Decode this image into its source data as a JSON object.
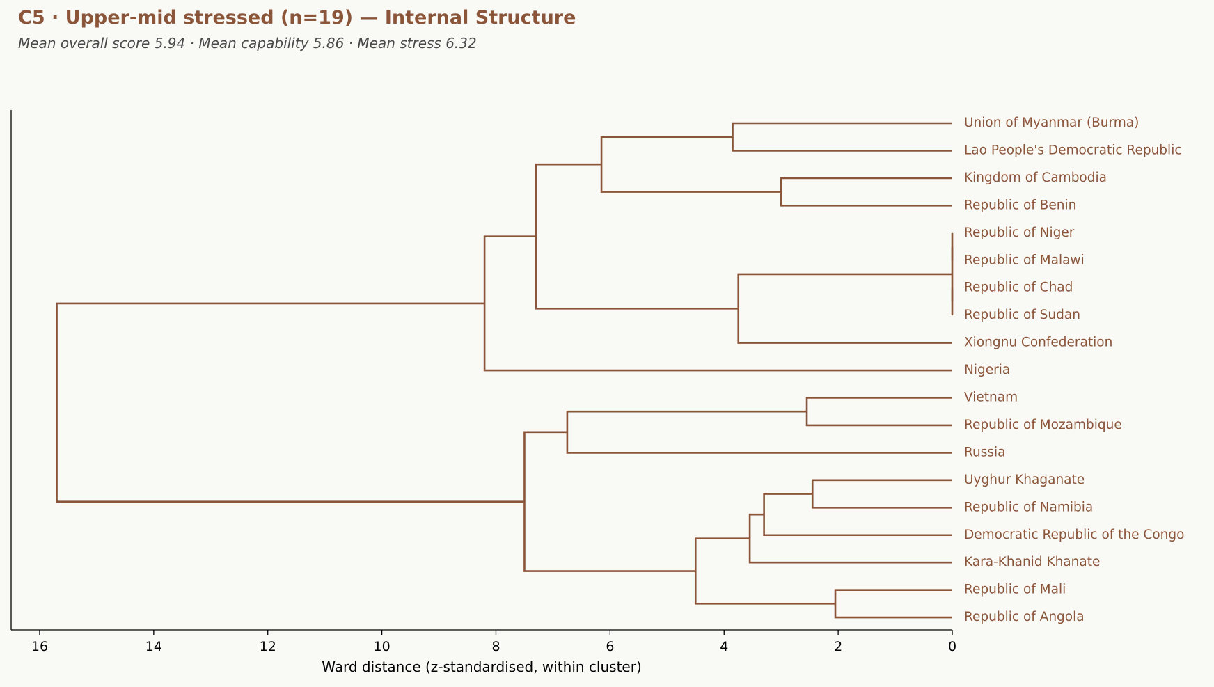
{
  "chart_data": {
    "type": "dendrogram",
    "title": "C5 · Upper-mid stressed (n=19) — Internal Structure",
    "subtitle": "Mean overall score 5.94  ·  Mean capability 5.86  ·  Mean stress 6.32",
    "xlabel": "Ward distance (z-standardised, within cluster)",
    "xlim": [
      16.5,
      0
    ],
    "xticks": [
      16,
      14,
      12,
      10,
      8,
      6,
      4,
      2,
      0
    ],
    "orientation": "left",
    "color": "#8b553a",
    "leaves": [
      "Union of Myanmar (Burma)",
      "Lao People's Democratic Republic",
      "Kingdom of Cambodia",
      "Republic of Benin",
      "Republic of Niger",
      "Republic of Malawi",
      "Republic of Chad",
      "Republic of Sudan",
      "Xiongnu Confederation",
      "Nigeria",
      "Vietnam",
      "Republic of Mozambique",
      "Russia",
      "Uyghur Khaganate",
      "Republic of Namibia",
      "Democratic Republic of the Congo",
      "Kara-Khanid Khanate",
      "Republic of Mali",
      "Republic of Angola"
    ],
    "merges": [
      {
        "a": 4,
        "b": 5,
        "height": 0
      },
      {
        "a": 6,
        "b": 7,
        "height": 0
      },
      {
        "a": "m0",
        "b": "m1",
        "height": 0
      },
      {
        "a": 0,
        "b": 1,
        "height": 3.85
      },
      {
        "a": 2,
        "b": 3,
        "height": 3.0
      },
      {
        "a": "m3",
        "b": "m4",
        "height": 6.15
      },
      {
        "a": "m2",
        "b": 8,
        "height": 3.75
      },
      {
        "a": "m5",
        "b": "m6",
        "height": 7.3
      },
      {
        "a": "m7",
        "b": 9,
        "height": 8.2
      },
      {
        "a": 10,
        "b": 11,
        "height": 2.55
      },
      {
        "a": "m9",
        "b": 12,
        "height": 6.75
      },
      {
        "a": 13,
        "b": 14,
        "height": 2.45
      },
      {
        "a": "m11",
        "b": 15,
        "height": 3.3
      },
      {
        "a": "m12",
        "b": 16,
        "height": 3.55
      },
      {
        "a": 17,
        "b": 18,
        "height": 2.05
      },
      {
        "a": "m13",
        "b": "m14",
        "height": 4.5
      },
      {
        "a": "m10",
        "b": "m15",
        "height": 7.5
      },
      {
        "a": "m8",
        "b": "m16",
        "height": 15.7
      }
    ]
  }
}
